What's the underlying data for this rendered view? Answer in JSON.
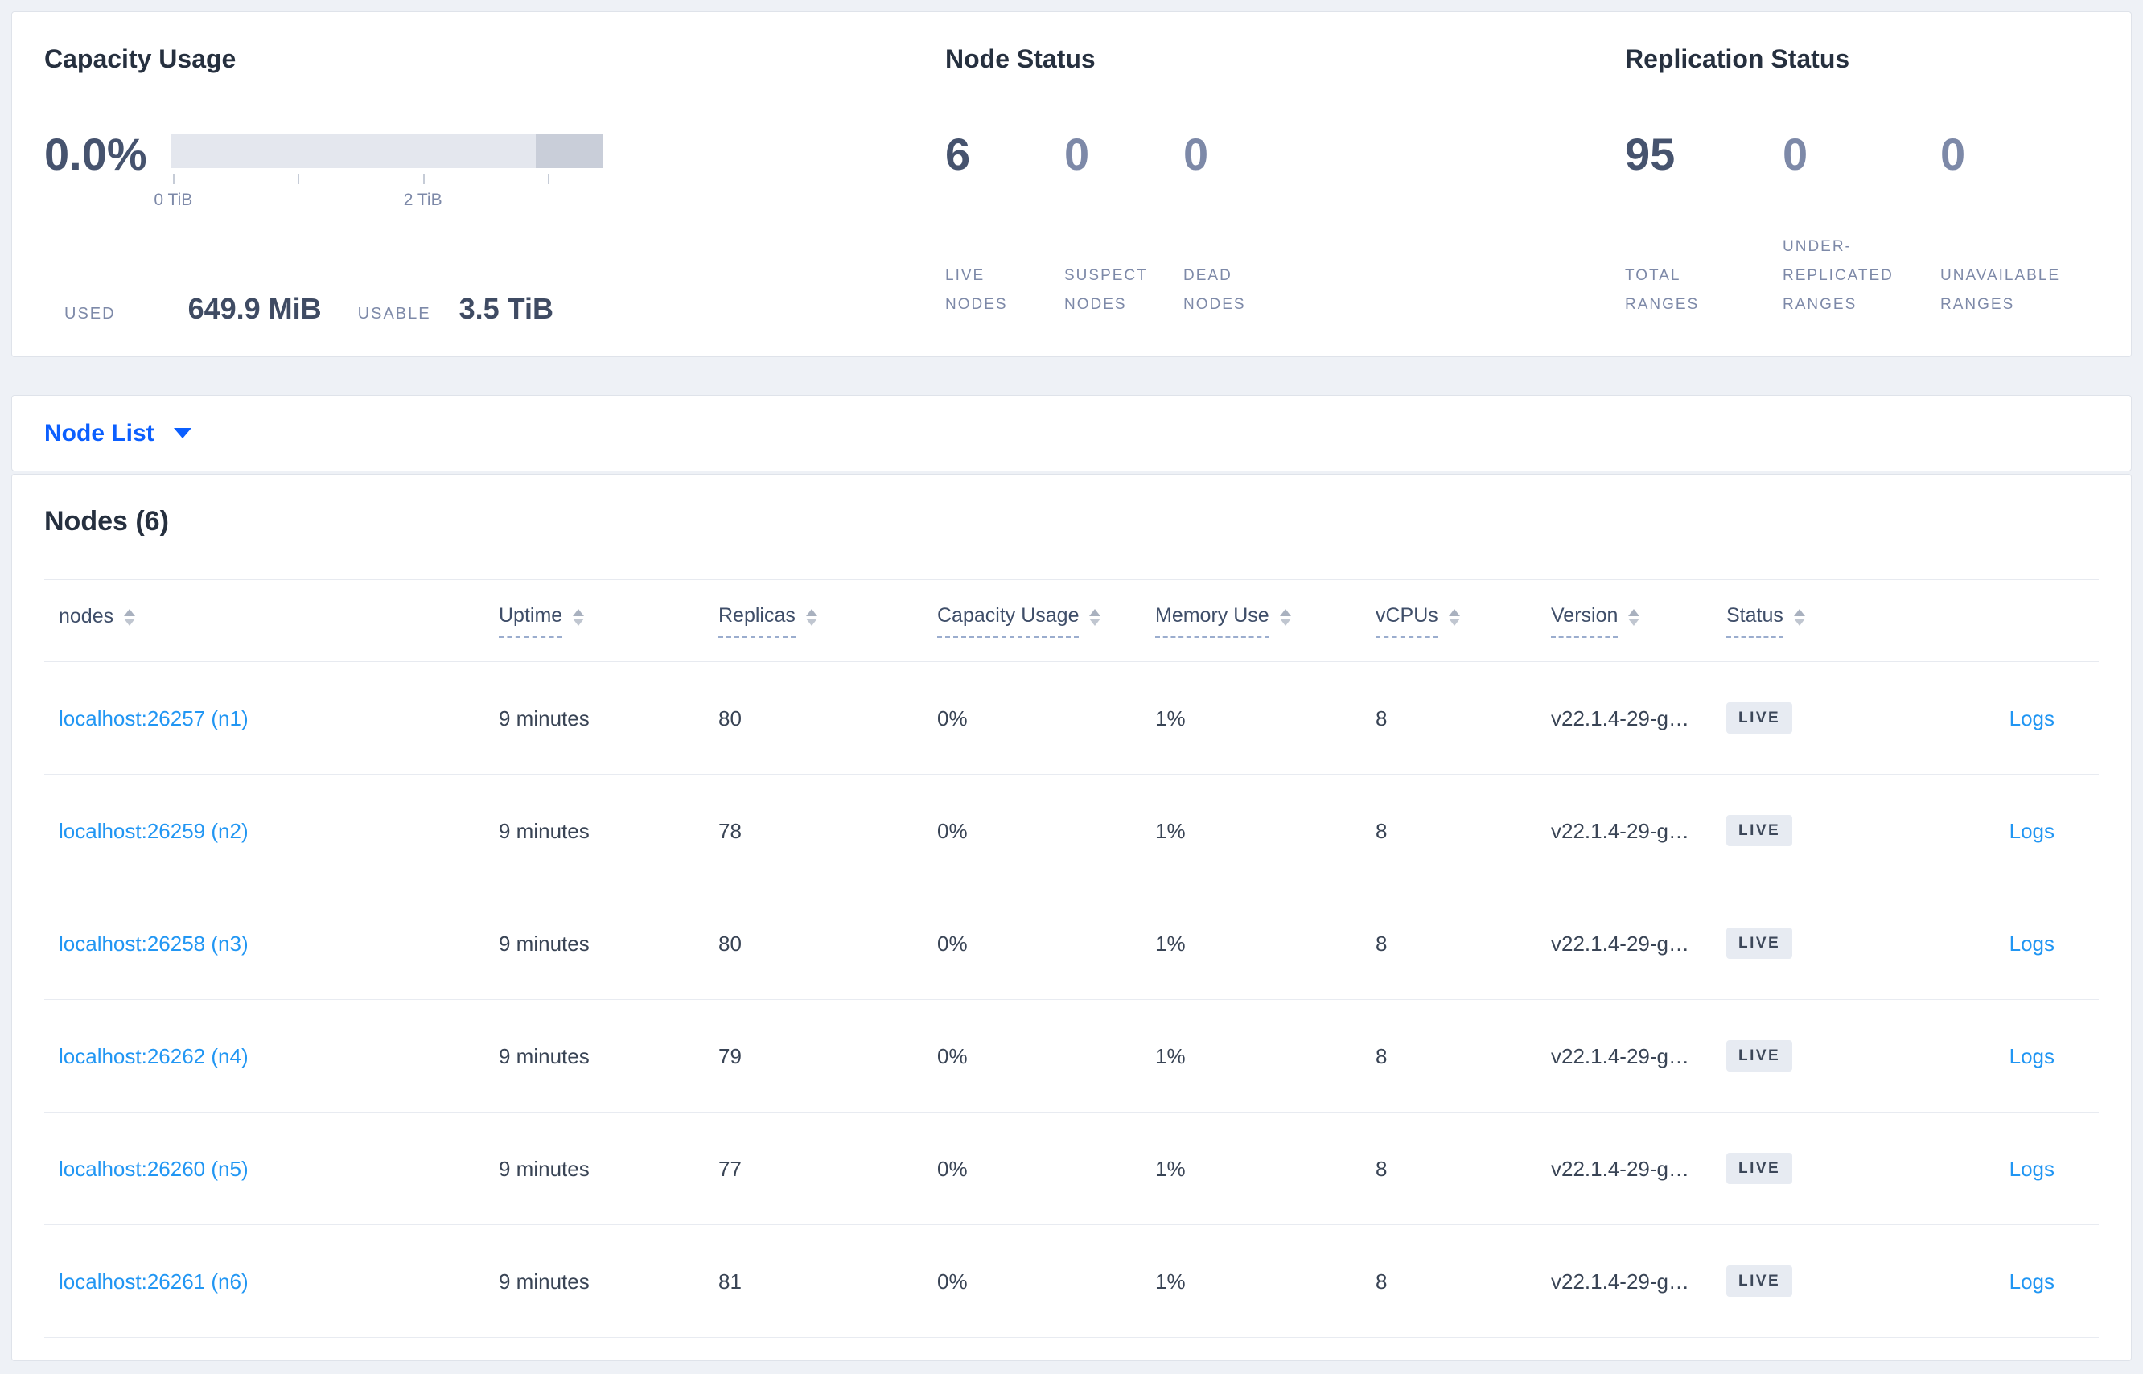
{
  "colors": {
    "page_bg": "#eef1f6",
    "link_blue": "#2196f3",
    "selector_blue": "#0b5fff",
    "badge_bg": "#e7ebf2",
    "bar_light": "#e4e7ee",
    "bar_dark": "#c9ced9"
  },
  "summary": {
    "capacity": {
      "title": "Capacity Usage",
      "percent": "0.0%",
      "bar": {
        "light_pct": 84.5,
        "dark_pct": 15.5
      },
      "ticks": [
        {
          "pos": 0.5,
          "label": "0 TiB"
        },
        {
          "pos": 29.3,
          "label": ""
        },
        {
          "pos": 58.4,
          "label": "2 TiB"
        },
        {
          "pos": 87.3,
          "label": ""
        }
      ],
      "used_label": "USED",
      "used_value": "649.9 MiB",
      "usable_label": "USABLE",
      "usable_value": "3.5 TiB"
    },
    "nodes": {
      "title": "Node Status",
      "stats": [
        {
          "value": "6",
          "label": "LIVE NODES",
          "emphasis": true
        },
        {
          "value": "0",
          "label": "SUSPECT NODES",
          "emphasis": false
        },
        {
          "value": "0",
          "label": "DEAD NODES",
          "emphasis": false
        }
      ]
    },
    "replication": {
      "title": "Replication Status",
      "stats": [
        {
          "value": "95",
          "label": "TOTAL RANGES",
          "emphasis": true
        },
        {
          "value": "0",
          "label": "UNDER-REPLICATED RANGES",
          "emphasis": false
        },
        {
          "value": "0",
          "label": "UNAVAILABLE RANGES",
          "emphasis": false
        }
      ]
    }
  },
  "view_selector": {
    "label": "Node List"
  },
  "table": {
    "title": "Nodes (6)",
    "columns": [
      {
        "key": "node",
        "label": "nodes",
        "sortable": true,
        "underline": false
      },
      {
        "key": "uptime",
        "label": "Uptime",
        "sortable": true,
        "underline": true
      },
      {
        "key": "replicas",
        "label": "Replicas",
        "sortable": true,
        "underline": true
      },
      {
        "key": "capacity",
        "label": "Capacity Usage",
        "sortable": true,
        "underline": true
      },
      {
        "key": "memory",
        "label": "Memory Use",
        "sortable": true,
        "underline": true
      },
      {
        "key": "vcpus",
        "label": "vCPUs",
        "sortable": true,
        "underline": true
      },
      {
        "key": "version",
        "label": "Version",
        "sortable": true,
        "underline": true
      },
      {
        "key": "status",
        "label": "Status",
        "sortable": true,
        "underline": true
      },
      {
        "key": "logs",
        "label": "",
        "sortable": false,
        "underline": false
      }
    ],
    "rows": [
      {
        "node": "localhost:26257 (n1)",
        "uptime": "9 minutes",
        "replicas": "80",
        "capacity": "0%",
        "memory": "1%",
        "vcpus": "8",
        "version": "v22.1.4-29-g…",
        "status": "LIVE",
        "logs": "Logs"
      },
      {
        "node": "localhost:26259 (n2)",
        "uptime": "9 minutes",
        "replicas": "78",
        "capacity": "0%",
        "memory": "1%",
        "vcpus": "8",
        "version": "v22.1.4-29-g…",
        "status": "LIVE",
        "logs": "Logs"
      },
      {
        "node": "localhost:26258 (n3)",
        "uptime": "9 minutes",
        "replicas": "80",
        "capacity": "0%",
        "memory": "1%",
        "vcpus": "8",
        "version": "v22.1.4-29-g…",
        "status": "LIVE",
        "logs": "Logs"
      },
      {
        "node": "localhost:26262 (n4)",
        "uptime": "9 minutes",
        "replicas": "79",
        "capacity": "0%",
        "memory": "1%",
        "vcpus": "8",
        "version": "v22.1.4-29-g…",
        "status": "LIVE",
        "logs": "Logs"
      },
      {
        "node": "localhost:26260 (n5)",
        "uptime": "9 minutes",
        "replicas": "77",
        "capacity": "0%",
        "memory": "1%",
        "vcpus": "8",
        "version": "v22.1.4-29-g…",
        "status": "LIVE",
        "logs": "Logs"
      },
      {
        "node": "localhost:26261 (n6)",
        "uptime": "9 minutes",
        "replicas": "81",
        "capacity": "0%",
        "memory": "1%",
        "vcpus": "8",
        "version": "v22.1.4-29-g…",
        "status": "LIVE",
        "logs": "Logs"
      }
    ]
  }
}
